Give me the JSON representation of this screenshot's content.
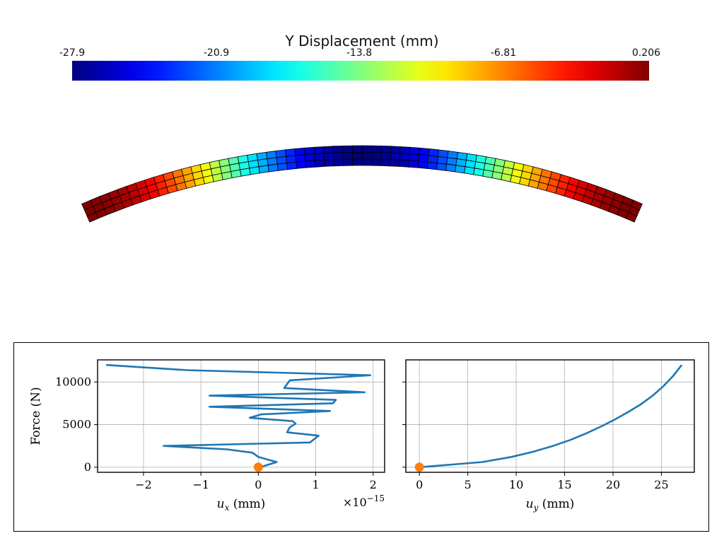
{
  "colorbar": {
    "title": "Y Displacement (mm)",
    "ticks": [
      "-27.9",
      "-20.9",
      "-13.8",
      "-6.81",
      "0.206"
    ],
    "min": -27.9,
    "max": 0.206,
    "colormap": "jet"
  },
  "beam": {
    "scalar": "Y Displacement (mm)",
    "element_rows": 3,
    "element_columns": 60,
    "edge_color": "#000000"
  },
  "chart_data": [
    {
      "type": "line",
      "xlabel": "u_x (mm)",
      "ylabel": "Force (N)",
      "x_scale_label": "×10",
      "x_scale_exponent": "−15",
      "xlim": [
        -2.8,
        2.2
      ],
      "ylim": [
        -600,
        12600
      ],
      "xticks": [
        -2,
        -1,
        0,
        1,
        2
      ],
      "xtick_labels": [
        "−2",
        "−1",
        "0",
        "1",
        "2"
      ],
      "yticks": [
        0,
        5000,
        10000
      ],
      "ytick_labels": [
        "0",
        "5000",
        "10000"
      ],
      "grid": true,
      "series": [
        {
          "color": "#1f77b4",
          "x": [
            0.0,
            0.08,
            0.32,
            0.0,
            -0.1,
            -0.55,
            -1.65,
            0.9,
            1.05,
            0.5,
            0.55,
            0.65,
            0.6,
            -0.15,
            0.05,
            1.25,
            -0.85,
            1.3,
            1.35,
            -0.85,
            1.85,
            0.45,
            0.55,
            1.95,
            -1.25,
            -2.65
          ],
          "y": [
            0,
            100,
            600,
            1200,
            1700,
            2100,
            2500,
            2900,
            3700,
            4100,
            4700,
            5100,
            5400,
            5800,
            6200,
            6600,
            7100,
            7500,
            7900,
            8400,
            8800,
            9300,
            10200,
            10800,
            11400,
            12000
          ]
        },
        {
          "color": "#ff7f0e",
          "marker": "circle",
          "x": [
            0.0
          ],
          "y": [
            0
          ]
        }
      ]
    },
    {
      "type": "line",
      "xlabel": "u_y (mm)",
      "ylabel": "",
      "xlim": [
        -1.4,
        28.4
      ],
      "ylim": [
        -600,
        12600
      ],
      "xticks": [
        0,
        5,
        10,
        15,
        20,
        25
      ],
      "xtick_labels": [
        "0",
        "5",
        "10",
        "15",
        "20",
        "25"
      ],
      "yticks": [
        0,
        5000,
        10000
      ],
      "ytick_labels": [
        "",
        "",
        ""
      ],
      "grid": true,
      "series": [
        {
          "color": "#1f77b4",
          "x": [
            0.0,
            6.5,
            9.5,
            11.7,
            13.8,
            15.6,
            17.3,
            18.8,
            20.2,
            21.6,
            22.9,
            24.1,
            25.2,
            26.2,
            27.1
          ],
          "y": [
            0,
            600,
            1200,
            1800,
            2500,
            3200,
            4000,
            4800,
            5600,
            6500,
            7400,
            8400,
            9500,
            10700,
            12000
          ]
        },
        {
          "color": "#ff7f0e",
          "marker": "circle",
          "x": [
            0.0
          ],
          "y": [
            0
          ]
        }
      ]
    }
  ]
}
